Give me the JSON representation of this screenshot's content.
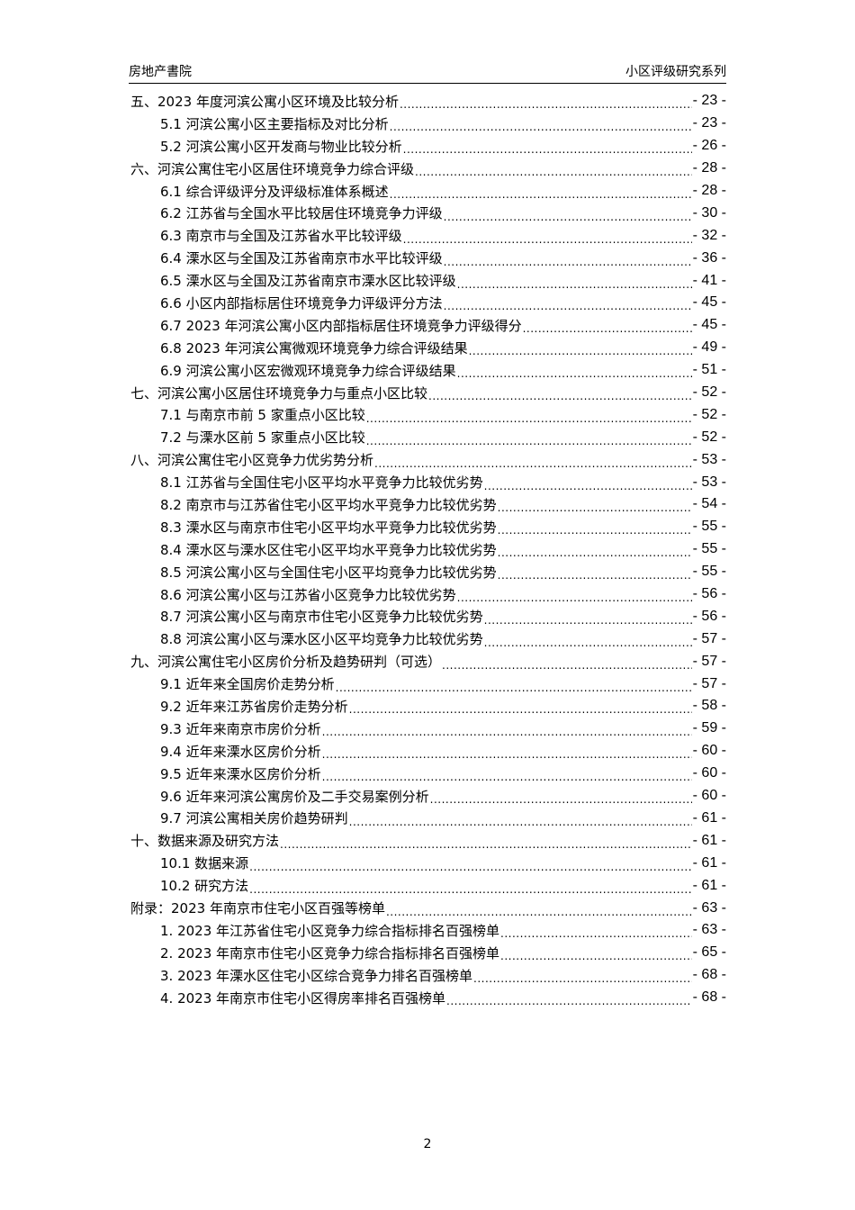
{
  "header": {
    "left": "房地产書院",
    "right": "小区评级研究系列"
  },
  "toc": [
    {
      "level": 1,
      "title": "五、2023 年度河滨公寓小区环境及比较分析",
      "page": "- 23 -"
    },
    {
      "level": 2,
      "title": "5.1 河滨公寓小区主要指标及对比分析",
      "page": "- 23 -"
    },
    {
      "level": 2,
      "title": "5.2 河滨公寓小区开发商与物业比较分析",
      "page": "- 26 -"
    },
    {
      "level": 1,
      "title": "六、河滨公寓住宅小区居住环境竞争力综合评级",
      "page": "- 28 -"
    },
    {
      "level": 2,
      "title": "6.1 综合评级评分及评级标准体系概述",
      "page": "- 28 -"
    },
    {
      "level": 2,
      "title": "6.2 江苏省与全国水平比较居住环境竞争力评级",
      "page": "- 30 -"
    },
    {
      "level": 2,
      "title": "6.3 南京市与全国及江苏省水平比较评级",
      "page": "- 32 -"
    },
    {
      "level": 2,
      "title": "6.4 溧水区与全国及江苏省南京市水平比较评级",
      "page": "- 36 -"
    },
    {
      "level": 2,
      "title": "6.5 溧水区与全国及江苏省南京市溧水区比较评级",
      "page": "- 41 -"
    },
    {
      "level": 2,
      "title": "6.6 小区内部指标居住环境竞争力评级评分方法",
      "page": "- 45 -"
    },
    {
      "level": 2,
      "title": "6.7 2023 年河滨公寓小区内部指标居住环境竞争力评级得分",
      "page": "- 45 -"
    },
    {
      "level": 2,
      "title": "6.8 2023 年河滨公寓微观环境竞争力综合评级结果",
      "page": "- 49 -"
    },
    {
      "level": 2,
      "title": "6.9 河滨公寓小区宏微观环境竞争力综合评级结果",
      "page": "- 51 -"
    },
    {
      "level": 1,
      "title": "七、河滨公寓小区居住环境竞争力与重点小区比较",
      "page": "- 52 -"
    },
    {
      "level": 2,
      "title": "7.1 与南京市前 5 家重点小区比较",
      "page": "- 52 -"
    },
    {
      "level": 2,
      "title": "7.2 与溧水区前 5 家重点小区比较",
      "page": "- 52 -"
    },
    {
      "level": 1,
      "title": "八、河滨公寓住宅小区竞争力优劣势分析",
      "page": "- 53 -"
    },
    {
      "level": 2,
      "title": "8.1 江苏省与全国住宅小区平均水平竞争力比较优劣势",
      "page": "- 53 -"
    },
    {
      "level": 2,
      "title": "8.2 南京市与江苏省住宅小区平均水平竞争力比较优劣势",
      "page": "- 54 -"
    },
    {
      "level": 2,
      "title": "8.3 溧水区与南京市住宅小区平均水平竞争力比较优劣势",
      "page": "- 55 -"
    },
    {
      "level": 2,
      "title": "8.4 溧水区与溧水区住宅小区平均水平竞争力比较优劣势",
      "page": "- 55 -"
    },
    {
      "level": 2,
      "title": "8.5 河滨公寓小区与全国住宅小区平均竞争力比较优劣势",
      "page": "- 55 -"
    },
    {
      "level": 2,
      "title": "8.6 河滨公寓小区与江苏省小区竞争力比较优劣势",
      "page": "- 56 -"
    },
    {
      "level": 2,
      "title": "8.7 河滨公寓小区与南京市住宅小区竞争力比较优劣势",
      "page": "- 56 -"
    },
    {
      "level": 2,
      "title": "8.8 河滨公寓小区与溧水区小区平均竞争力比较优劣势",
      "page": "- 57 -"
    },
    {
      "level": 1,
      "title": "九、河滨公寓住宅小区房价分析及趋势研判（可选）",
      "page": "- 57 -"
    },
    {
      "level": 2,
      "title": "9.1 近年来全国房价走势分析",
      "page": "- 57 -"
    },
    {
      "level": 2,
      "title": "9.2 近年来江苏省房价走势分析",
      "page": "- 58 -"
    },
    {
      "level": 2,
      "title": "9.3 近年来南京市房价分析",
      "page": "- 59 -"
    },
    {
      "level": 2,
      "title": "9.4 近年来溧水区房价分析",
      "page": "- 60 -"
    },
    {
      "level": 2,
      "title": "9.5 近年来溧水区房价分析",
      "page": "- 60 -"
    },
    {
      "level": 2,
      "title": "9.6 近年来河滨公寓房价及二手交易案例分析",
      "page": "- 60 -"
    },
    {
      "level": 2,
      "title": "9.7 河滨公寓相关房价趋势研判",
      "page": "- 61 -"
    },
    {
      "level": 1,
      "title": "十、数据来源及研究方法",
      "page": "- 61 -"
    },
    {
      "level": 2,
      "title": "10.1 数据来源",
      "page": "- 61 -"
    },
    {
      "level": 2,
      "title": "10.2 研究方法",
      "page": "- 61 -"
    },
    {
      "level": 1,
      "title": "附录：2023 年南京市住宅小区百强等榜单",
      "page": "- 63 -"
    },
    {
      "level": 2,
      "title": "1.  2023 年江苏省住宅小区竞争力综合指标排名百强榜单",
      "page": "- 63 -"
    },
    {
      "level": 2,
      "title": "2.  2023 年南京市住宅小区竞争力综合指标排名百强榜单",
      "page": "- 65 -"
    },
    {
      "level": 2,
      "title": "3.  2023 年溧水区住宅小区综合竞争力排名百强榜单",
      "page": "- 68 -"
    },
    {
      "level": 2,
      "title": "4.  2023 年南京市住宅小区得房率排名百强榜单",
      "page": "- 68 -"
    }
  ],
  "footer": {
    "page_number": "2"
  }
}
